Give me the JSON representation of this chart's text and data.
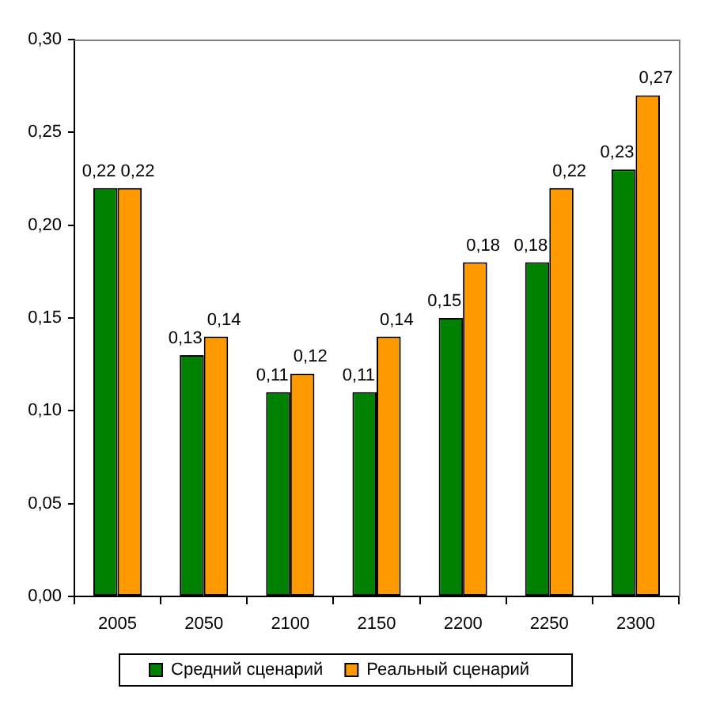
{
  "chart_data": {
    "type": "bar",
    "categories": [
      "2005",
      "2050",
      "2100",
      "2150",
      "2200",
      "2250",
      "2300"
    ],
    "series": [
      {
        "name": "Средний сценарий",
        "color": "#008000",
        "values": [
          0.22,
          0.13,
          0.11,
          0.11,
          0.15,
          0.18,
          0.23
        ],
        "value_labels": [
          "0,22",
          "0,13",
          "0,11",
          "0,11",
          "0,15",
          "0,18",
          "0,23"
        ]
      },
      {
        "name": "Реальный сценарий",
        "color": "#ff9900",
        "values": [
          0.22,
          0.14,
          0.12,
          0.14,
          0.18,
          0.22,
          0.27
        ],
        "value_labels": [
          "0,22",
          "0,14",
          "0,12",
          "0,14",
          "0,18",
          "0,22",
          "0,27"
        ]
      }
    ],
    "ylim": [
      0,
      0.3
    ],
    "yticks": [
      {
        "value": 0,
        "label": "0,00"
      },
      {
        "value": 0.05,
        "label": "0,05"
      },
      {
        "value": 0.1,
        "label": "0,10"
      },
      {
        "value": 0.15,
        "label": "0,15"
      },
      {
        "value": 0.2,
        "label": "0,20"
      },
      {
        "value": 0.25,
        "label": "0,25"
      },
      {
        "value": 0.3,
        "label": "0,30"
      }
    ],
    "grid": false,
    "legend": "bottom"
  }
}
